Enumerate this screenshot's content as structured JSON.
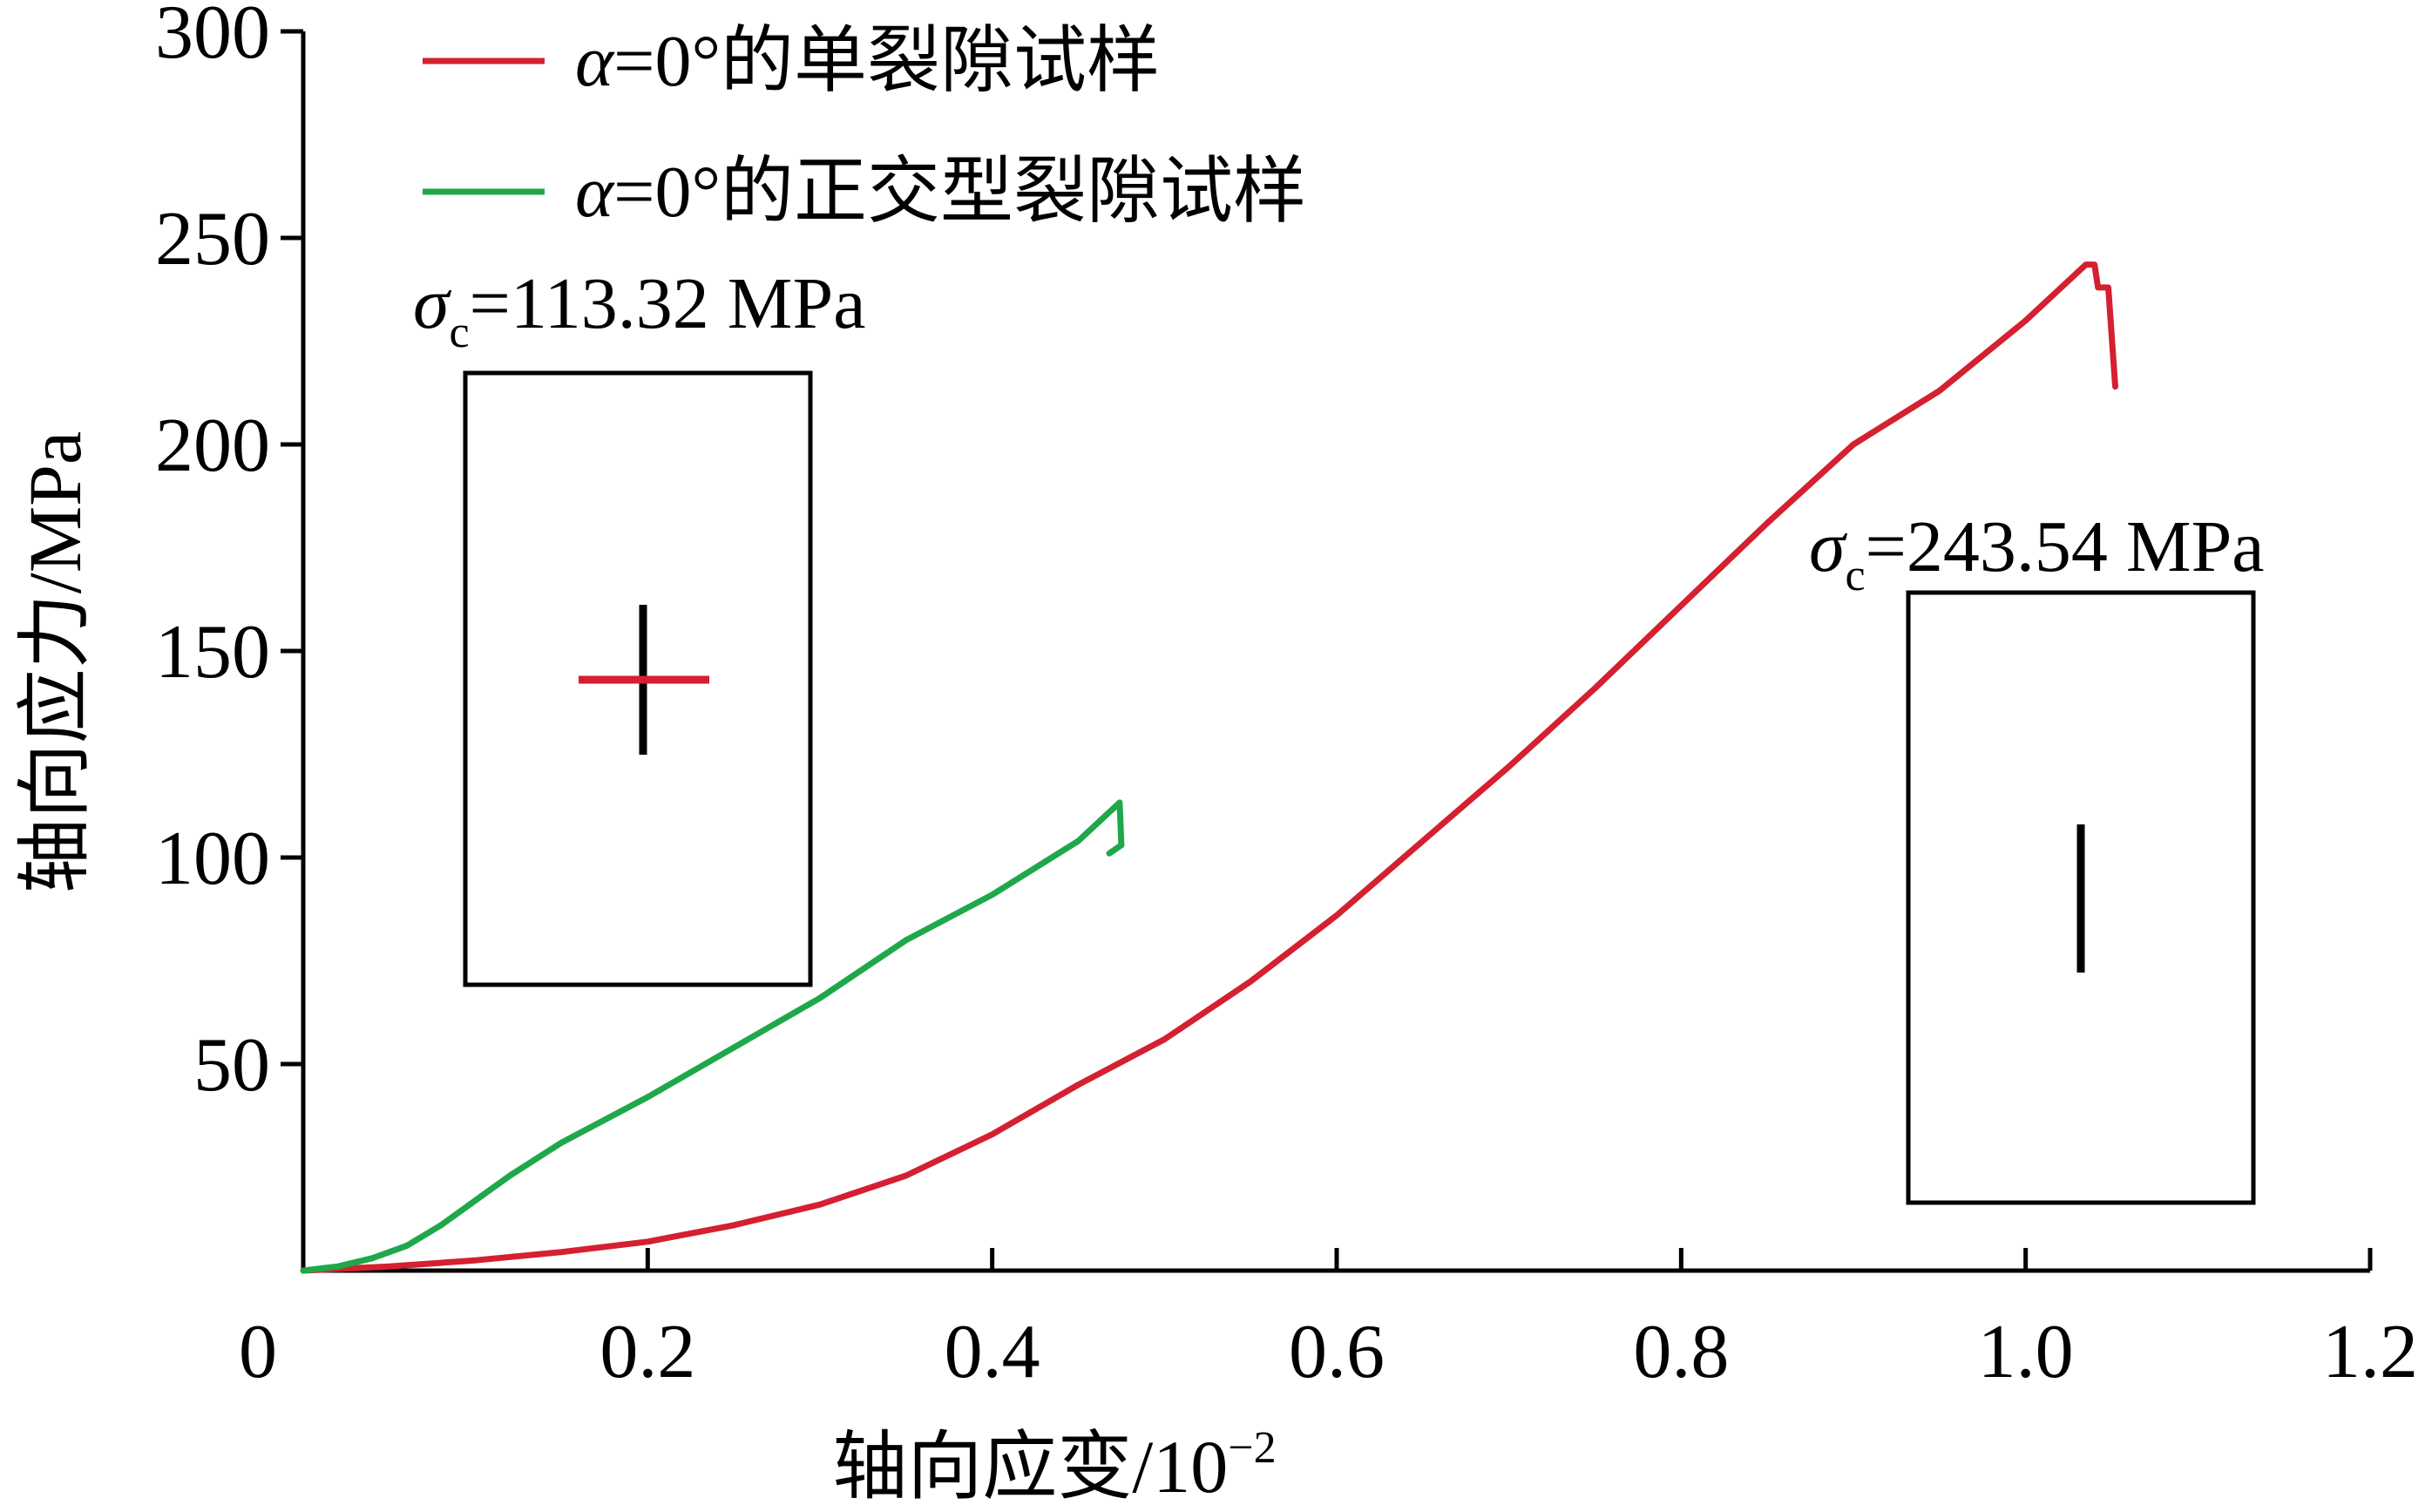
{
  "chart_data": {
    "type": "line",
    "xlabel": "轴向应变/10",
    "xlabel_sup": "−2",
    "ylabel": "轴向应力/MPa",
    "xlim": [
      0,
      1.2
    ],
    "ylim": [
      0,
      300
    ],
    "x_ticks": [
      "0",
      "0.2",
      "0.4",
      "0.6",
      "0.8",
      "1.0",
      "1.2"
    ],
    "y_ticks": [
      "50",
      "100",
      "150",
      "200",
      "250",
      "300"
    ],
    "grid": false,
    "legend_position": "top-left",
    "series": [
      {
        "name": "α=0°的单裂隙试样",
        "name_parts": {
          "alpha": "α",
          "rest": "=0°的单裂隙试样"
        },
        "color": "#d42030",
        "points": [
          [
            0,
            0
          ],
          [
            0.05,
            1
          ],
          [
            0.1,
            2.5
          ],
          [
            0.15,
            4.5
          ],
          [
            0.2,
            7
          ],
          [
            0.25,
            11
          ],
          [
            0.3,
            16
          ],
          [
            0.35,
            23
          ],
          [
            0.4,
            33
          ],
          [
            0.45,
            45
          ],
          [
            0.5,
            56
          ],
          [
            0.55,
            70
          ],
          [
            0.6,
            86
          ],
          [
            0.65,
            104
          ],
          [
            0.7,
            122
          ],
          [
            0.75,
            141
          ],
          [
            0.8,
            161
          ],
          [
            0.85,
            181
          ],
          [
            0.9,
            200
          ],
          [
            0.95,
            213
          ],
          [
            1.0,
            230
          ],
          [
            1.035,
            243.54
          ],
          [
            1.04,
            243.54
          ],
          [
            1.042,
            238
          ],
          [
            1.048,
            238
          ],
          [
            1.052,
            214
          ]
        ]
      },
      {
        "name": "α=0°的正交型裂隙试样",
        "name_parts": {
          "alpha": "α",
          "rest": "=0°的正交型裂隙试样"
        },
        "color": "#1fa84a",
        "points": [
          [
            0,
            0
          ],
          [
            0.02,
            1
          ],
          [
            0.04,
            3
          ],
          [
            0.06,
            6
          ],
          [
            0.08,
            11
          ],
          [
            0.1,
            17
          ],
          [
            0.12,
            23
          ],
          [
            0.15,
            31
          ],
          [
            0.2,
            42
          ],
          [
            0.25,
            54
          ],
          [
            0.3,
            66
          ],
          [
            0.35,
            80
          ],
          [
            0.4,
            91
          ],
          [
            0.45,
            104
          ],
          [
            0.474,
            113.32
          ],
          [
            0.475,
            103
          ],
          [
            0.468,
            101
          ]
        ]
      }
    ],
    "annotations": [
      {
        "sigma": "σ",
        "sub": "c",
        "text": "=113.32 MPa"
      },
      {
        "sigma": "σ",
        "sub": "c",
        "text": "=243.54 MPa"
      }
    ],
    "insets": [
      {
        "name": "cross-crack specimen",
        "crack_colors": [
          "#000000",
          "#d42030"
        ]
      },
      {
        "name": "single-crack specimen",
        "crack_colors": [
          "#000000"
        ]
      }
    ]
  }
}
